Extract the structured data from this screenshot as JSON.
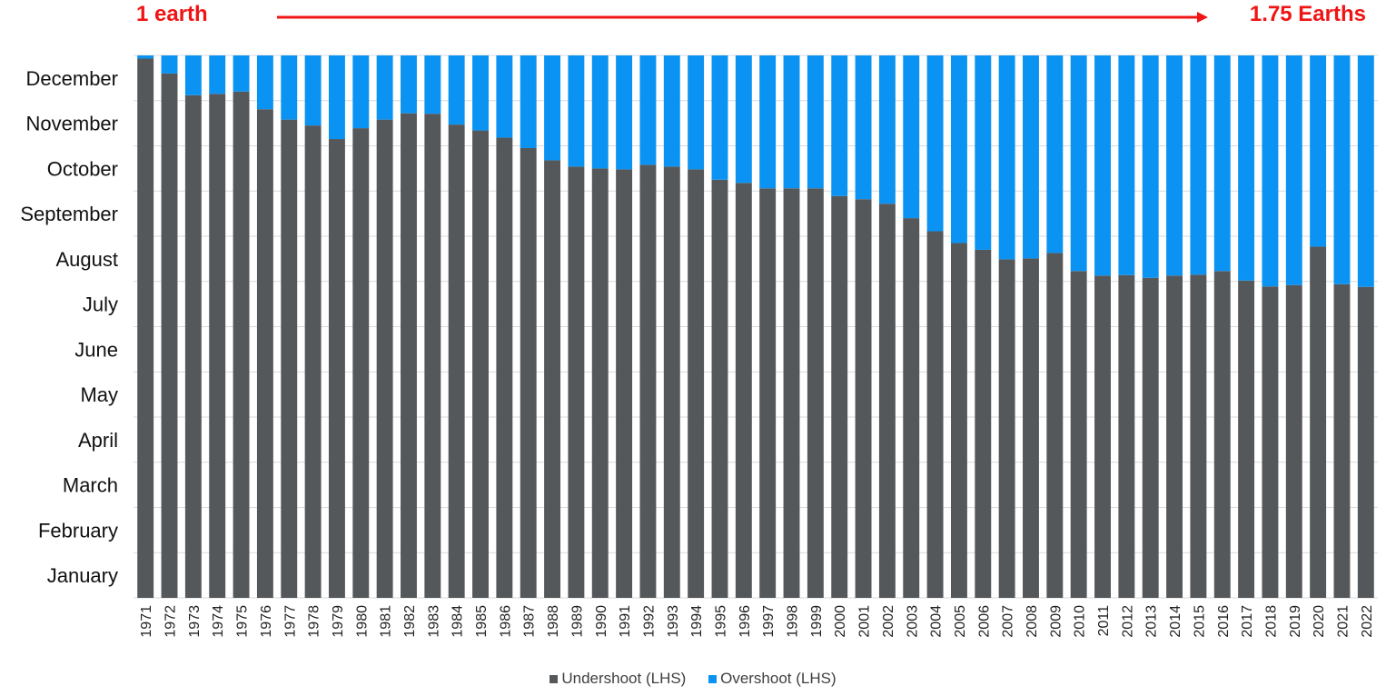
{
  "annotations": {
    "left_label": "1 earth",
    "right_label": "1.75 Earths",
    "arrow_color": "#f01414"
  },
  "legend": [
    {
      "label": "Undershoot (LHS)",
      "color": "#55585a"
    },
    {
      "label": "Overshoot (LHS)",
      "color": "#0a93f2"
    }
  ],
  "chart_data": {
    "type": "bar",
    "stacked": true,
    "x": [
      1971,
      1972,
      1973,
      1974,
      1975,
      1976,
      1977,
      1978,
      1979,
      1980,
      1981,
      1982,
      1983,
      1984,
      1985,
      1986,
      1987,
      1988,
      1989,
      1990,
      1991,
      1992,
      1993,
      1994,
      1995,
      1996,
      1997,
      1998,
      1999,
      2000,
      2001,
      2002,
      2003,
      2004,
      2005,
      2006,
      2007,
      2008,
      2009,
      2010,
      2011,
      2012,
      2013,
      2014,
      2015,
      2016,
      2017,
      2018,
      2019,
      2020,
      2021,
      2022
    ],
    "y_tick_labels": [
      "January",
      "February",
      "March",
      "April",
      "May",
      "June",
      "July",
      "August",
      "September",
      "October",
      "November",
      "December"
    ],
    "ylim_months": [
      0,
      12
    ],
    "series": [
      {
        "name": "Undershoot (LHS)",
        "color": "#55585a",
        "values": [
          11.93,
          11.6,
          11.12,
          11.15,
          11.2,
          10.81,
          10.58,
          10.45,
          10.15,
          10.39,
          10.58,
          10.72,
          10.71,
          10.47,
          10.34,
          10.18,
          9.95,
          9.68,
          9.54,
          9.5,
          9.48,
          9.58,
          9.54,
          9.48,
          9.25,
          9.18,
          9.06,
          9.06,
          9.06,
          8.89,
          8.82,
          8.72,
          8.4,
          8.11,
          7.85,
          7.7,
          7.49,
          7.51,
          7.63,
          7.23,
          7.13,
          7.14,
          7.08,
          7.13,
          7.15,
          7.23,
          7.02,
          6.89,
          6.92,
          7.77,
          6.94,
          6.88
        ]
      },
      {
        "name": "Overshoot (LHS)",
        "color": "#0a93f2",
        "values": [
          0.07,
          0.4,
          0.88,
          0.85,
          0.8,
          1.19,
          1.42,
          1.55,
          1.85,
          1.61,
          1.42,
          1.28,
          1.29,
          1.53,
          1.66,
          1.82,
          2.05,
          2.32,
          2.46,
          2.5,
          2.52,
          2.42,
          2.46,
          2.52,
          2.75,
          2.82,
          2.94,
          2.94,
          2.94,
          3.11,
          3.18,
          3.28,
          3.6,
          3.89,
          4.15,
          4.3,
          4.51,
          4.49,
          4.37,
          4.77,
          4.87,
          4.86,
          4.92,
          4.87,
          4.85,
          4.77,
          4.98,
          5.11,
          5.08,
          4.23,
          5.06,
          5.12
        ]
      }
    ],
    "grid": true,
    "legend_position": "bottom"
  }
}
